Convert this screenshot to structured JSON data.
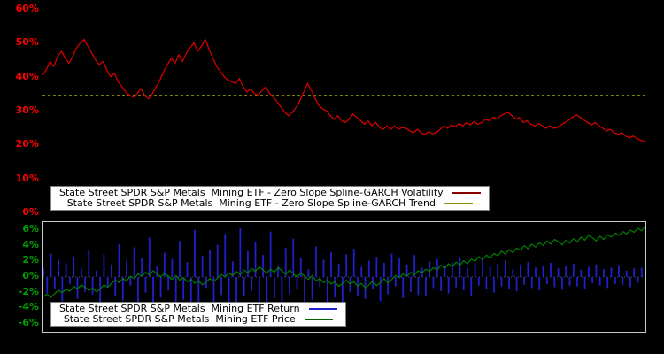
{
  "figure": {
    "background": "#000000"
  },
  "top_chart": {
    "y_tick_labels": [
      "60%",
      "50%",
      "40%",
      "30%",
      "20%",
      "10%",
      "0%"
    ],
    "axis_label_color": "#ff0000",
    "legend": {
      "volatility_label": "State Street SPDR S&P Metals  Mining ETF - Zero Slope Spline-GARCH Volatility",
      "trend_label": "State Street SPDR S&P Metals  Mining ETF - Zero Slope Spline-GARCH Trend"
    }
  },
  "bottom_chart": {
    "y_tick_labels": [
      "6%",
      "4%",
      "2%",
      "0%",
      "-2%",
      "-4%",
      "-6%"
    ],
    "axis_label_color": "#00a000",
    "legend": {
      "return_label": "State Street SPDR S&P Metals  Mining ETF Return",
      "price_label": "State Street SPDR S&P Metals  Mining ETF Price"
    }
  },
  "chart_data": [
    {
      "type": "line",
      "title": "",
      "xlabel": "",
      "ylabel": "",
      "ylim": [
        0,
        60
      ],
      "y_ticks": [
        60,
        50,
        40,
        30,
        20,
        10,
        0
      ],
      "grid": false,
      "legend_position": "bottom-left",
      "series": [
        {
          "name": "State Street SPDR S&P Metals  Mining ETF - Zero Slope Spline-GARCH Volatility",
          "color": "#d40000",
          "legend_color": "#8b0000",
          "style": "solid",
          "values": [
            40.5,
            42,
            44.5,
            43,
            46,
            47.5,
            45.5,
            44,
            46,
            48.5,
            50,
            51,
            49,
            47,
            45,
            43.5,
            44.5,
            42,
            40,
            41,
            38.5,
            37,
            35.5,
            34.5,
            34,
            35,
            36.5,
            34.5,
            33.5,
            35,
            37,
            39,
            41.5,
            43.5,
            45.5,
            44,
            46.5,
            44.5,
            47,
            48.5,
            50,
            47.5,
            49,
            51,
            48,
            45.5,
            43,
            41.5,
            40,
            39,
            38.5,
            38,
            39.5,
            37,
            35.5,
            36.5,
            35,
            34.5,
            36,
            37,
            35,
            34,
            32.5,
            31,
            29.5,
            28.5,
            29.5,
            31,
            33,
            35.5,
            38,
            36,
            33.5,
            31.5,
            30.5,
            30,
            28.5,
            27.5,
            28.5,
            27,
            26.5,
            27.5,
            29,
            28,
            27,
            26,
            27,
            25.5,
            26.5,
            25,
            24.5,
            25.5,
            24.5,
            25.5,
            24.5,
            25,
            24.8,
            24,
            23.5,
            24.5,
            23.5,
            23,
            23.8,
            23.2,
            23.5,
            24.5,
            25.5,
            24.8,
            25.8,
            25.2,
            26.2,
            25.5,
            26.5,
            25.8,
            26.8,
            26,
            26.5,
            27.5,
            27,
            28,
            27.5,
            28.5,
            29,
            29.5,
            28.5,
            27.5,
            28,
            26.5,
            27,
            26,
            25.5,
            26.2,
            25.5,
            24.8,
            25.5,
            24.8,
            25,
            25.8,
            26.5,
            27.2,
            28,
            28.8,
            28,
            27.2,
            26.5,
            25.8,
            26.5,
            25.5,
            24.8,
            24,
            24.5,
            23.5,
            23,
            23.5,
            22.5,
            22,
            22.5,
            21.8,
            21.2,
            21
          ]
        },
        {
          "name": "State Street SPDR S&P Metals  Mining ETF - Zero Slope Spline-GARCH Trend",
          "color": "#a8a800",
          "legend_color": "#909000",
          "style": "dashed",
          "constant": 34.5
        }
      ]
    },
    {
      "type": "bar",
      "title": "",
      "xlabel": "",
      "ylabel": "",
      "ylim": [
        -7,
        7
      ],
      "y_ticks": [
        6,
        4,
        2,
        0,
        -2,
        -4,
        -6
      ],
      "grid": false,
      "legend_position": "bottom-left",
      "series": [
        {
          "name": "State Street SPDR S&P Metals  Mining ETF Return",
          "chart": "bar",
          "color": "#2020cc",
          "legend_color": "#2020cc",
          "values": [
            1.2,
            -2.1,
            3.0,
            -1.5,
            2.2,
            -3.1,
            1.8,
            -0.9,
            2.6,
            -2.8,
            1.1,
            -1.9,
            3.4,
            -2.2,
            0.8,
            -3.6,
            2.9,
            -1.2,
            1.6,
            -2.4,
            4.2,
            -3.0,
            2.1,
            -1.1,
            3.8,
            -4.5,
            2.4,
            -2.0,
            5.0,
            -3.4,
            1.4,
            -2.6,
            3.1,
            -1.7,
            2.3,
            -5.2,
            4.6,
            -2.9,
            1.9,
            -3.8,
            6.0,
            -4.2,
            2.7,
            -1.4,
            3.5,
            -6.1,
            4.1,
            -2.3,
            5.5,
            -3.2,
            2.0,
            -4.8,
            6.2,
            -2.5,
            3.3,
            -1.8,
            4.4,
            -5.5,
            2.8,
            -3.9,
            5.8,
            -2.7,
            1.5,
            -4.1,
            3.7,
            -2.2,
            4.9,
            -1.6,
            2.5,
            -3.5,
            1.0,
            -2.9,
            3.9,
            -1.3,
            2.2,
            -4.4,
            3.2,
            -2.6,
            1.7,
            -3.3,
            2.9,
            -1.9,
            3.6,
            -2.4,
            1.3,
            -2.8,
            2.1,
            -1.5,
            2.6,
            -3.1,
            1.8,
            -2.2,
            3.0,
            -1.2,
            2.4,
            -2.7,
            1.6,
            -1.9,
            2.8,
            -2.3,
            1.2,
            -2.5,
            2.0,
            -1.4,
            2.3,
            -1.8,
            1.5,
            -2.1,
            1.9,
            -1.3,
            2.5,
            -1.7,
            1.1,
            -2.4,
            1.8,
            -1.1,
            2.2,
            -1.6,
            1.4,
            -2.0,
            1.7,
            -1.2,
            2.1,
            -1.5,
            1.0,
            -1.8,
            1.6,
            -1.0,
            1.9,
            -1.4,
            1.2,
            -1.7,
            1.5,
            -0.9,
            1.8,
            -1.3,
            1.1,
            -1.6,
            1.4,
            -1.1,
            1.7,
            -1.2,
            0.9,
            -1.5,
            1.3,
            -0.8,
            1.6,
            -1.1,
            1.0,
            -1.4,
            1.2,
            -0.9,
            1.5,
            -1.0,
            0.8,
            -1.3,
            1.1,
            -0.7,
            1.2,
            -0.9
          ]
        },
        {
          "name": "State Street SPDR S&P Metals  Mining ETF Price",
          "chart": "line",
          "color": "#008000",
          "legend_color": "#006400",
          "values": [
            -2.5,
            -2.2,
            -2.6,
            -2.1,
            -1.7,
            -2.0,
            -1.5,
            -1.8,
            -1.2,
            -1.5,
            -1.0,
            -1.3,
            -1.7,
            -1.4,
            -1.9,
            -1.5,
            -1.0,
            -1.3,
            -0.8,
            -0.4,
            -0.7,
            -0.2,
            -0.5,
            0.1,
            -0.2,
            0.4,
            0.1,
            0.6,
            0.3,
            0.8,
            0.4,
            0.0,
            0.5,
            0.1,
            -0.3,
            0.2,
            -0.4,
            -0.1,
            -0.6,
            -0.3,
            -0.8,
            -0.5,
            -1.0,
            -0.6,
            -0.2,
            -0.6,
            -0.1,
            0.3,
            0.0,
            0.5,
            0.2,
            0.7,
            0.3,
            0.9,
            0.5,
            1.1,
            0.7,
            1.3,
            0.9,
            0.5,
            1.0,
            0.6,
            1.2,
            0.8,
            0.3,
            0.9,
            0.4,
            0.0,
            0.5,
            0.1,
            -0.3,
            0.2,
            -0.5,
            -0.2,
            -0.7,
            -0.4,
            -0.9,
            -0.6,
            -1.2,
            -0.8,
            -0.4,
            -0.9,
            -0.6,
            -1.2,
            -0.8,
            -1.4,
            -1.0,
            -0.5,
            -1.1,
            -0.7,
            -0.2,
            -0.8,
            -0.3,
            0.2,
            -0.1,
            0.4,
            0.1,
            0.6,
            0.3,
            0.8,
            0.5,
            1.0,
            0.7,
            1.2,
            0.9,
            1.5,
            1.1,
            1.7,
            1.3,
            1.9,
            1.5,
            2.1,
            1.7,
            2.3,
            2.0,
            2.6,
            2.2,
            2.8,
            2.4,
            3.0,
            2.7,
            3.3,
            2.9,
            3.5,
            3.1,
            3.7,
            3.4,
            4.0,
            3.6,
            4.2,
            3.8,
            4.4,
            4.0,
            4.6,
            4.2,
            4.8,
            4.5,
            4.1,
            4.7,
            4.3,
            4.9,
            4.5,
            5.1,
            4.7,
            5.3,
            5.0,
            4.6,
            5.2,
            4.8,
            5.4,
            5.1,
            5.6,
            5.3,
            5.8,
            5.5,
            6.0,
            5.7,
            6.2,
            5.9,
            6.5
          ]
        }
      ]
    }
  ]
}
